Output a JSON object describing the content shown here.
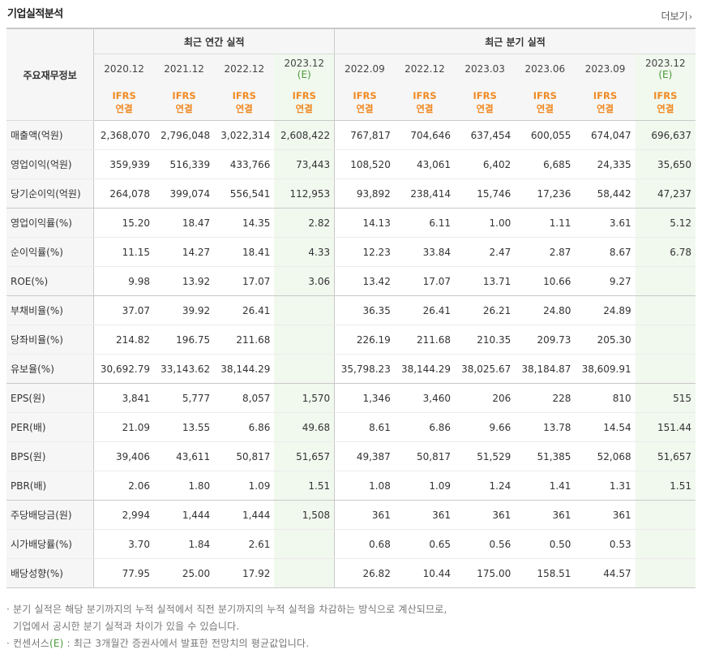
{
  "title": "기업실적분석",
  "more_label": "더보기",
  "more_chevron": "›",
  "corner_label": "주요재무정보",
  "sections": {
    "annual": "최근 연간 실적",
    "quarter": "최근 분기 실적"
  },
  "periods": [
    {
      "label": "2020.12",
      "estimate": false
    },
    {
      "label": "2021.12",
      "estimate": false
    },
    {
      "label": "2022.12",
      "estimate": false
    },
    {
      "label": "2023.12",
      "estimate": true,
      "est_mark": "(E)"
    },
    {
      "label": "2022.09",
      "estimate": false
    },
    {
      "label": "2022.12",
      "estimate": false
    },
    {
      "label": "2023.03",
      "estimate": false
    },
    {
      "label": "2023.06",
      "estimate": false
    },
    {
      "label": "2023.09",
      "estimate": false
    },
    {
      "label": "2023.12",
      "estimate": true,
      "est_mark": "(E)"
    }
  ],
  "ifrs": {
    "line1": "IFRS",
    "line2": "연결"
  },
  "rows": [
    {
      "label": "매출액(억원)",
      "values": [
        "2,368,070",
        "2,796,048",
        "3,022,314",
        "2,608,422",
        "767,817",
        "704,646",
        "637,454",
        "600,055",
        "674,047",
        "696,637"
      ]
    },
    {
      "label": "영업이익(억원)",
      "values": [
        "359,939",
        "516,339",
        "433,766",
        "73,443",
        "108,520",
        "43,061",
        "6,402",
        "6,685",
        "24,335",
        "35,650"
      ]
    },
    {
      "label": "당기순이익(억원)",
      "values": [
        "264,078",
        "399,074",
        "556,541",
        "112,953",
        "93,892",
        "238,414",
        "15,746",
        "17,236",
        "58,442",
        "47,237"
      ],
      "group_end": true
    },
    {
      "label": "영업이익률(%)",
      "values": [
        "15.20",
        "18.47",
        "14.35",
        "2.82",
        "14.13",
        "6.11",
        "1.00",
        "1.11",
        "3.61",
        "5.12"
      ]
    },
    {
      "label": "순이익률(%)",
      "values": [
        "11.15",
        "14.27",
        "18.41",
        "4.33",
        "12.23",
        "33.84",
        "2.47",
        "2.87",
        "8.67",
        "6.78"
      ]
    },
    {
      "label": "ROE(%)",
      "values": [
        "9.98",
        "13.92",
        "17.07",
        "3.06",
        "13.42",
        "17.07",
        "13.71",
        "10.66",
        "9.27",
        ""
      ],
      "group_end": true
    },
    {
      "label": "부채비율(%)",
      "values": [
        "37.07",
        "39.92",
        "26.41",
        "",
        "36.35",
        "26.41",
        "26.21",
        "24.80",
        "24.89",
        ""
      ]
    },
    {
      "label": "당좌비율(%)",
      "values": [
        "214.82",
        "196.75",
        "211.68",
        "",
        "226.19",
        "211.68",
        "210.35",
        "209.73",
        "205.30",
        ""
      ]
    },
    {
      "label": "유보율(%)",
      "values": [
        "30,692.79",
        "33,143.62",
        "38,144.29",
        "",
        "35,798.23",
        "38,144.29",
        "38,025.67",
        "38,184.87",
        "38,609.91",
        ""
      ],
      "group_end": true
    },
    {
      "label": "EPS(원)",
      "values": [
        "3,841",
        "5,777",
        "8,057",
        "1,570",
        "1,346",
        "3,460",
        "206",
        "228",
        "810",
        "515"
      ]
    },
    {
      "label": "PER(배)",
      "values": [
        "21.09",
        "13.55",
        "6.86",
        "49.68",
        "8.61",
        "6.86",
        "9.66",
        "13.78",
        "14.54",
        "151.44"
      ]
    },
    {
      "label": "BPS(원)",
      "values": [
        "39,406",
        "43,611",
        "50,817",
        "51,657",
        "49,387",
        "50,817",
        "51,529",
        "51,385",
        "52,068",
        "51,657"
      ]
    },
    {
      "label": "PBR(배)",
      "values": [
        "2.06",
        "1.80",
        "1.09",
        "1.51",
        "1.08",
        "1.09",
        "1.24",
        "1.41",
        "1.31",
        "1.51"
      ],
      "group_end": true
    },
    {
      "label": "주당배당금(원)",
      "values": [
        "2,994",
        "1,444",
        "1,444",
        "1,508",
        "361",
        "361",
        "361",
        "361",
        "361",
        ""
      ]
    },
    {
      "label": "시가배당률(%)",
      "values": [
        "3.70",
        "1.84",
        "2.61",
        "",
        "0.68",
        "0.65",
        "0.56",
        "0.50",
        "0.53",
        ""
      ]
    },
    {
      "label": "배당성향(%)",
      "values": [
        "77.95",
        "25.00",
        "17.92",
        "",
        "26.82",
        "10.44",
        "175.00",
        "158.51",
        "44.57",
        ""
      ]
    }
  ],
  "footer": {
    "line1": "· 분기 실적은 해당 분기까지의 누적 실적에서 직전 분기까지의 누적 실적을 차감하는 방식으로 계산되므로,",
    "line2": "  기업에서 공시한 분기 실적과 차이가 있을 수 있습니다.",
    "line3_prefix": "· 컨센서스",
    "line3_mark": "(E)",
    "line3_suffix": " : 최근 3개월간 증권사에서 발표한 전망치의 평균값입니다."
  },
  "colors": {
    "ifrs_orange": "#f08a24",
    "estimate_green": "#4a9a3a",
    "estimate_bg": "#f1f8ee",
    "header_bg": "#f6f6f6"
  }
}
